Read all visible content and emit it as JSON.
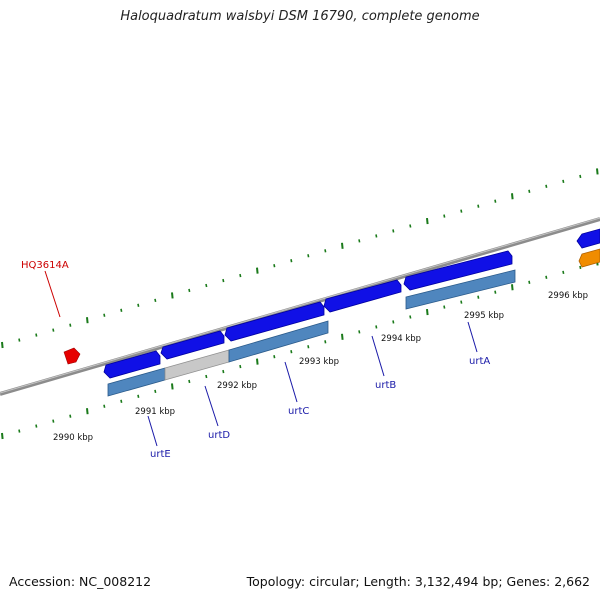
{
  "title": "Haloquadratum walsbyi DSM 16790, complete genome",
  "footer": {
    "accession": "Accession: NC_008212",
    "summary": "Topology: circular; Length: 3,132,494 bp; Genes: 2,662"
  },
  "colors": {
    "gene_forward": "#1010e6",
    "cds_bar": "#4f86be",
    "cds_bar_grey": "#c8c8c8",
    "orange_gene": "#f08c00",
    "red_gene": "#e60000",
    "tick": "#1a7a1a",
    "genome_line": "#8c8c8c"
  },
  "kbp_labels": [
    "2990 kbp",
    "2991 kbp",
    "2992 kbp",
    "2993 kbp",
    "2994 kbp",
    "2995 kbp",
    "2996 kbp"
  ],
  "genes": [
    "urtE",
    "urtD",
    "urtC",
    "urtB",
    "urtA"
  ],
  "red_gene_label": "HQ3614A"
}
